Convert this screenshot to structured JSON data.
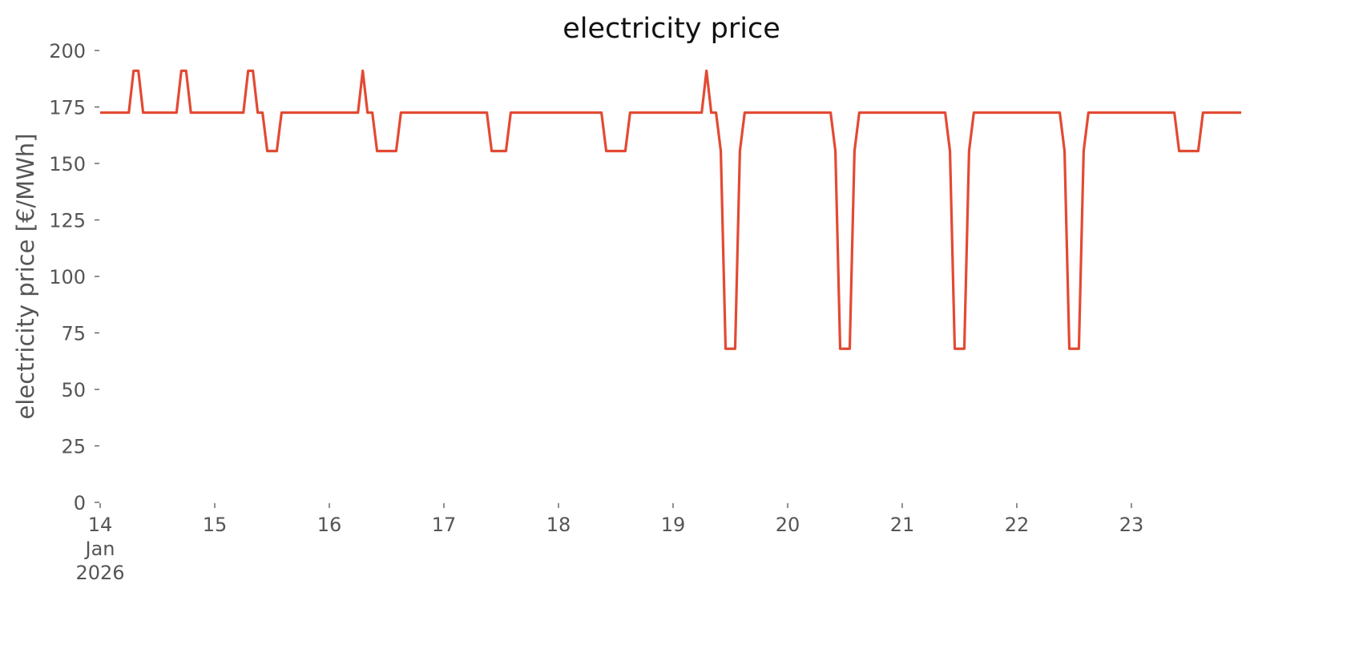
{
  "chart_data": {
    "type": "line",
    "title": "electricity price",
    "ylabel": "electricity price [€/MWh]",
    "color": "#e24a33",
    "x": [
      "2026-01-14T00:00",
      "2026-01-14T01:00",
      "2026-01-14T02:00",
      "2026-01-14T03:00",
      "2026-01-14T04:00",
      "2026-01-14T05:00",
      "2026-01-14T06:00",
      "2026-01-14T07:00",
      "2026-01-14T08:00",
      "2026-01-14T09:00",
      "2026-01-14T10:00",
      "2026-01-14T11:00",
      "2026-01-14T12:00",
      "2026-01-14T13:00",
      "2026-01-14T14:00",
      "2026-01-14T15:00",
      "2026-01-14T16:00",
      "2026-01-14T17:00",
      "2026-01-14T18:00",
      "2026-01-14T19:00",
      "2026-01-14T20:00",
      "2026-01-14T21:00",
      "2026-01-14T22:00",
      "2026-01-14T23:00",
      "2026-01-15T00:00",
      "2026-01-15T01:00",
      "2026-01-15T02:00",
      "2026-01-15T03:00",
      "2026-01-15T04:00",
      "2026-01-15T05:00",
      "2026-01-15T06:00",
      "2026-01-15T07:00",
      "2026-01-15T08:00",
      "2026-01-15T09:00",
      "2026-01-15T10:00",
      "2026-01-15T11:00",
      "2026-01-15T12:00",
      "2026-01-15T13:00",
      "2026-01-15T14:00",
      "2026-01-15T15:00",
      "2026-01-15T16:00",
      "2026-01-15T17:00",
      "2026-01-15T18:00",
      "2026-01-15T19:00",
      "2026-01-15T20:00",
      "2026-01-15T21:00",
      "2026-01-15T22:00",
      "2026-01-15T23:00",
      "2026-01-16T00:00",
      "2026-01-16T01:00",
      "2026-01-16T02:00",
      "2026-01-16T03:00",
      "2026-01-16T04:00",
      "2026-01-16T05:00",
      "2026-01-16T06:00",
      "2026-01-16T07:00",
      "2026-01-16T08:00",
      "2026-01-16T09:00",
      "2026-01-16T10:00",
      "2026-01-16T11:00",
      "2026-01-16T12:00",
      "2026-01-16T13:00",
      "2026-01-16T14:00",
      "2026-01-16T15:00",
      "2026-01-16T16:00",
      "2026-01-16T17:00",
      "2026-01-16T18:00",
      "2026-01-16T19:00",
      "2026-01-16T20:00",
      "2026-01-16T21:00",
      "2026-01-16T22:00",
      "2026-01-16T23:00",
      "2026-01-17T00:00",
      "2026-01-17T01:00",
      "2026-01-17T02:00",
      "2026-01-17T03:00",
      "2026-01-17T04:00",
      "2026-01-17T05:00",
      "2026-01-17T06:00",
      "2026-01-17T07:00",
      "2026-01-17T08:00",
      "2026-01-17T09:00",
      "2026-01-17T10:00",
      "2026-01-17T11:00",
      "2026-01-17T12:00",
      "2026-01-17T13:00",
      "2026-01-17T14:00",
      "2026-01-17T15:00",
      "2026-01-17T16:00",
      "2026-01-17T17:00",
      "2026-01-17T18:00",
      "2026-01-17T19:00",
      "2026-01-17T20:00",
      "2026-01-17T21:00",
      "2026-01-17T22:00",
      "2026-01-17T23:00",
      "2026-01-18T00:00",
      "2026-01-18T01:00",
      "2026-01-18T02:00",
      "2026-01-18T03:00",
      "2026-01-18T04:00",
      "2026-01-18T05:00",
      "2026-01-18T06:00",
      "2026-01-18T07:00",
      "2026-01-18T08:00",
      "2026-01-18T09:00",
      "2026-01-18T10:00",
      "2026-01-18T11:00",
      "2026-01-18T12:00",
      "2026-01-18T13:00",
      "2026-01-18T14:00",
      "2026-01-18T15:00",
      "2026-01-18T16:00",
      "2026-01-18T17:00",
      "2026-01-18T18:00",
      "2026-01-18T19:00",
      "2026-01-18T20:00",
      "2026-01-18T21:00",
      "2026-01-18T22:00",
      "2026-01-18T23:00",
      "2026-01-19T00:00",
      "2026-01-19T01:00",
      "2026-01-19T02:00",
      "2026-01-19T03:00",
      "2026-01-19T04:00",
      "2026-01-19T05:00",
      "2026-01-19T06:00",
      "2026-01-19T07:00",
      "2026-01-19T08:00",
      "2026-01-19T09:00",
      "2026-01-19T10:00",
      "2026-01-19T11:00",
      "2026-01-19T12:00",
      "2026-01-19T13:00",
      "2026-01-19T14:00",
      "2026-01-19T15:00",
      "2026-01-19T16:00",
      "2026-01-19T17:00",
      "2026-01-19T18:00",
      "2026-01-19T19:00",
      "2026-01-19T20:00",
      "2026-01-19T21:00",
      "2026-01-19T22:00",
      "2026-01-19T23:00",
      "2026-01-20T00:00",
      "2026-01-20T01:00",
      "2026-01-20T02:00",
      "2026-01-20T03:00",
      "2026-01-20T04:00",
      "2026-01-20T05:00",
      "2026-01-20T06:00",
      "2026-01-20T07:00",
      "2026-01-20T08:00",
      "2026-01-20T09:00",
      "2026-01-20T10:00",
      "2026-01-20T11:00",
      "2026-01-20T12:00",
      "2026-01-20T13:00",
      "2026-01-20T14:00",
      "2026-01-20T15:00",
      "2026-01-20T16:00",
      "2026-01-20T17:00",
      "2026-01-20T18:00",
      "2026-01-20T19:00",
      "2026-01-20T20:00",
      "2026-01-20T21:00",
      "2026-01-20T22:00",
      "2026-01-20T23:00",
      "2026-01-21T00:00",
      "2026-01-21T01:00",
      "2026-01-21T02:00",
      "2026-01-21T03:00",
      "2026-01-21T04:00",
      "2026-01-21T05:00",
      "2026-01-21T06:00",
      "2026-01-21T07:00",
      "2026-01-21T08:00",
      "2026-01-21T09:00",
      "2026-01-21T10:00",
      "2026-01-21T11:00",
      "2026-01-21T12:00",
      "2026-01-21T13:00",
      "2026-01-21T14:00",
      "2026-01-21T15:00",
      "2026-01-21T16:00",
      "2026-01-21T17:00",
      "2026-01-21T18:00",
      "2026-01-21T19:00",
      "2026-01-21T20:00",
      "2026-01-21T21:00",
      "2026-01-21T22:00",
      "2026-01-21T23:00",
      "2026-01-22T00:00",
      "2026-01-22T01:00",
      "2026-01-22T02:00",
      "2026-01-22T03:00",
      "2026-01-22T04:00",
      "2026-01-22T05:00",
      "2026-01-22T06:00",
      "2026-01-22T07:00",
      "2026-01-22T08:00",
      "2026-01-22T09:00",
      "2026-01-22T10:00",
      "2026-01-22T11:00",
      "2026-01-22T12:00",
      "2026-01-22T13:00",
      "2026-01-22T14:00",
      "2026-01-22T15:00",
      "2026-01-22T16:00",
      "2026-01-22T17:00",
      "2026-01-22T18:00",
      "2026-01-22T19:00",
      "2026-01-22T20:00",
      "2026-01-22T21:00",
      "2026-01-22T22:00",
      "2026-01-22T23:00",
      "2026-01-23T00:00",
      "2026-01-23T01:00",
      "2026-01-23T02:00",
      "2026-01-23T03:00",
      "2026-01-23T04:00",
      "2026-01-23T05:00",
      "2026-01-23T06:00",
      "2026-01-23T07:00",
      "2026-01-23T08:00",
      "2026-01-23T09:00",
      "2026-01-23T10:00",
      "2026-01-23T11:00",
      "2026-01-23T12:00",
      "2026-01-23T13:00",
      "2026-01-23T14:00",
      "2026-01-23T15:00",
      "2026-01-23T16:00",
      "2026-01-23T17:00",
      "2026-01-23T18:00",
      "2026-01-23T19:00",
      "2026-01-23T20:00",
      "2026-01-23T21:00",
      "2026-01-23T22:00",
      "2026-01-23T23:00"
    ],
    "values": [
      172.5,
      172.5,
      172.5,
      172.5,
      172.5,
      172.5,
      172.5,
      191,
      191,
      172.5,
      172.5,
      172.5,
      172.5,
      172.5,
      172.5,
      172.5,
      172.5,
      191,
      191,
      172.5,
      172.5,
      172.5,
      172.5,
      172.5,
      172.5,
      172.5,
      172.5,
      172.5,
      172.5,
      172.5,
      172.5,
      191,
      191,
      172.5,
      172.5,
      155.5,
      155.5,
      155.5,
      172.5,
      172.5,
      172.5,
      172.5,
      172.5,
      172.5,
      172.5,
      172.5,
      172.5,
      172.5,
      172.5,
      172.5,
      172.5,
      172.5,
      172.5,
      172.5,
      172.5,
      191,
      172.5,
      172.5,
      155.5,
      155.5,
      155.5,
      155.5,
      155.5,
      172.5,
      172.5,
      172.5,
      172.5,
      172.5,
      172.5,
      172.5,
      172.5,
      172.5,
      172.5,
      172.5,
      172.5,
      172.5,
      172.5,
      172.5,
      172.5,
      172.5,
      172.5,
      172.5,
      155.5,
      155.5,
      155.5,
      155.5,
      172.5,
      172.5,
      172.5,
      172.5,
      172.5,
      172.5,
      172.5,
      172.5,
      172.5,
      172.5,
      172.5,
      172.5,
      172.5,
      172.5,
      172.5,
      172.5,
      172.5,
      172.5,
      172.5,
      172.5,
      155.5,
      155.5,
      155.5,
      155.5,
      155.5,
      172.5,
      172.5,
      172.5,
      172.5,
      172.5,
      172.5,
      172.5,
      172.5,
      172.5,
      172.5,
      172.5,
      172.5,
      172.5,
      172.5,
      172.5,
      172.5,
      191,
      172.5,
      172.5,
      155.5,
      68,
      68,
      68,
      155.5,
      172.5,
      172.5,
      172.5,
      172.5,
      172.5,
      172.5,
      172.5,
      172.5,
      172.5,
      172.5,
      172.5,
      172.5,
      172.5,
      172.5,
      172.5,
      172.5,
      172.5,
      172.5,
      172.5,
      155.5,
      68,
      68,
      68,
      155.5,
      172.5,
      172.5,
      172.5,
      172.5,
      172.5,
      172.5,
      172.5,
      172.5,
      172.5,
      172.5,
      172.5,
      172.5,
      172.5,
      172.5,
      172.5,
      172.5,
      172.5,
      172.5,
      172.5,
      155.5,
      68,
      68,
      68,
      155.5,
      172.5,
      172.5,
      172.5,
      172.5,
      172.5,
      172.5,
      172.5,
      172.5,
      172.5,
      172.5,
      172.5,
      172.5,
      172.5,
      172.5,
      172.5,
      172.5,
      172.5,
      172.5,
      172.5,
      155.5,
      68,
      68,
      68,
      155.5,
      172.5,
      172.5,
      172.5,
      172.5,
      172.5,
      172.5,
      172.5,
      172.5,
      172.5,
      172.5,
      172.5,
      172.5,
      172.5,
      172.5,
      172.5,
      172.5,
      172.5,
      172.5,
      172.5,
      155.5,
      155.5,
      155.5,
      155.5,
      155.5,
      172.5,
      172.5,
      172.5,
      172.5,
      172.5,
      172.5,
      172.5,
      172.5,
      172.5
    ],
    "xlim": [
      "2026-01-14T00:00",
      "2026-01-23T23:00"
    ],
    "xticks": [
      {
        "value": "2026-01-14T00:00",
        "label": "14\nJan\n2026"
      },
      {
        "value": "2026-01-15T00:00",
        "label": "15"
      },
      {
        "value": "2026-01-16T00:00",
        "label": "16"
      },
      {
        "value": "2026-01-17T00:00",
        "label": "17"
      },
      {
        "value": "2026-01-18T00:00",
        "label": "18"
      },
      {
        "value": "2026-01-19T00:00",
        "label": "19"
      },
      {
        "value": "2026-01-20T00:00",
        "label": "20"
      },
      {
        "value": "2026-01-21T00:00",
        "label": "21"
      },
      {
        "value": "2026-01-22T00:00",
        "label": "22"
      },
      {
        "value": "2026-01-23T00:00",
        "label": "23"
      }
    ],
    "ylim": [
      0,
      200
    ],
    "yticks": [
      0,
      25,
      50,
      75,
      100,
      125,
      150,
      175,
      200
    ],
    "grid": false
  }
}
